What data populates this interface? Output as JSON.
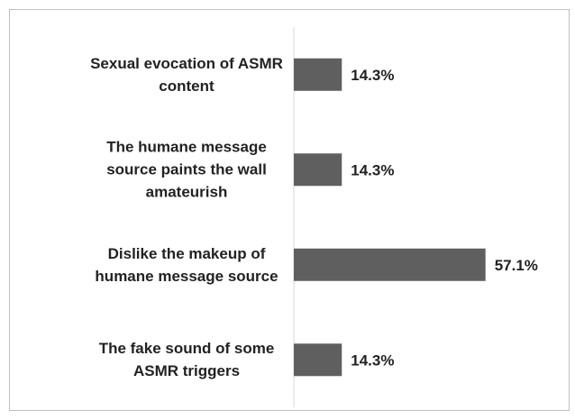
{
  "chart_data": {
    "type": "bar",
    "orientation": "horizontal",
    "categories": [
      "Sexual evocation of ASMR content",
      "The humane message source paints the wall amateurish",
      "Dislike the makeup of humane message source",
      "The fake sound of some ASMR triggers"
    ],
    "values": [
      14.3,
      14.3,
      57.1,
      14.3
    ],
    "value_labels": [
      "14.3%",
      "14.3%",
      "57.1%",
      "14.3%"
    ],
    "color": "#5f5f5f",
    "xlim": [
      0,
      80
    ]
  }
}
